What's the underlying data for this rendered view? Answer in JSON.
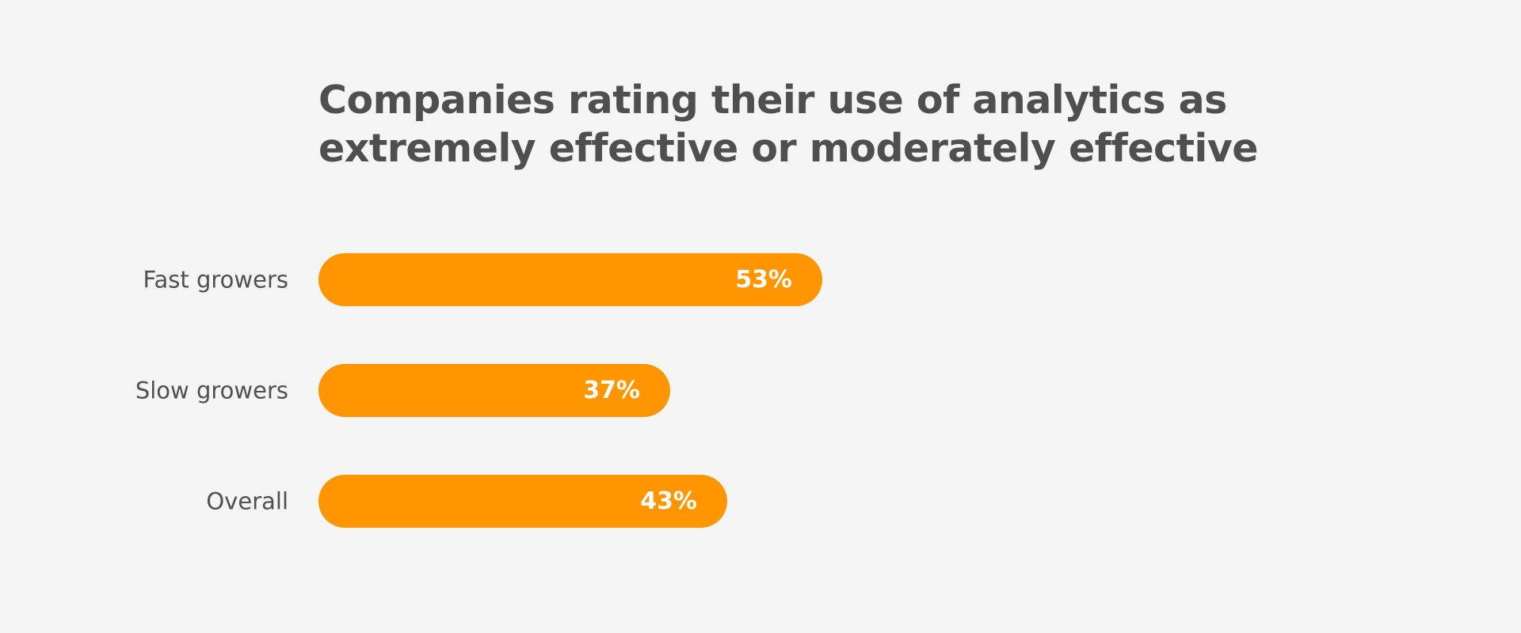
{
  "chart_data": {
    "type": "bar",
    "orientation": "horizontal",
    "title": "Companies rating their use of analytics as extremely effective or moderately effective",
    "categories": [
      "Fast growers",
      "Slow growers",
      "Overall"
    ],
    "values": [
      53,
      37,
      43
    ],
    "value_labels": [
      "53%",
      "37%",
      "43%"
    ],
    "unit": "%",
    "xlim": [
      0,
      100
    ],
    "grid": false,
    "legend": "none",
    "colors": {
      "bar": "#ff9500",
      "value_text": "#ffffff",
      "category_text": "#505050",
      "title_text": "#4f4f4f",
      "background": "#f5f5f5"
    }
  }
}
